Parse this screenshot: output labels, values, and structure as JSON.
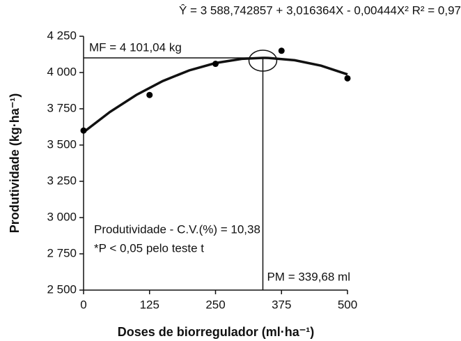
{
  "chart_data": {
    "type": "scatter",
    "equation": "Ŷ = 3 588,742857 + 3,016364X - 0,00444X² R² = 0,97",
    "x_label": "Doses de biorregulador (ml·ha⁻¹)",
    "y_label": "Produtividade (kg·ha⁻¹)",
    "x": [
      0,
      125,
      250,
      375,
      500
    ],
    "values": [
      3600,
      3845,
      4060,
      4150,
      3960
    ],
    "color": "#000000",
    "fit": {
      "x": [
        0,
        50,
        100,
        150,
        200,
        250,
        300,
        339.68,
        350,
        400,
        450,
        500
      ],
      "values": [
        3588.7,
        3728.4,
        3845.9,
        3941.3,
        4014.4,
        4065.3,
        4094.0,
        4101.0,
        4100.5,
        4084.8,
        4047.0,
        3986.9
      ]
    },
    "mf": {
      "value": 4101.04,
      "label": "MF = 4 101,04 kg"
    },
    "pm": {
      "value": 339.68,
      "label": "PM = 339,68 ml"
    },
    "notes": [
      "Produtividade - C.V.(%) = 10,38",
      "*P < 0,05  pelo teste t"
    ],
    "xlim": [
      0,
      500
    ],
    "xticks": [
      0,
      125,
      250,
      375,
      500
    ],
    "ylim": [
      2500,
      4250
    ],
    "yticks": [
      {
        "value": 2500,
        "label": "2 500"
      },
      {
        "value": 2750,
        "label": "2 750"
      },
      {
        "value": 3000,
        "label": "3 000"
      },
      {
        "value": 3250,
        "label": "3 250"
      },
      {
        "value": 3500,
        "label": "3 500"
      },
      {
        "value": 3750,
        "label": "3 750"
      },
      {
        "value": 4000,
        "label": "4 000"
      },
      {
        "value": 4250,
        "label": "4 250"
      }
    ],
    "grid": false
  }
}
